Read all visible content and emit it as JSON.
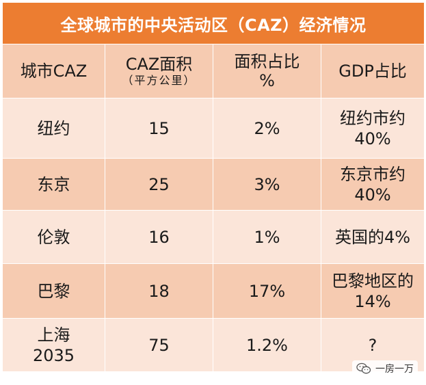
{
  "title": "全球城市的中央活动区（CAZ）经济情况",
  "headers": {
    "city": "城市CAZ",
    "area": "CAZ面积",
    "area_unit": "（平方公里）",
    "area_pct_line1": "面积占比",
    "area_pct_line2": "%",
    "gdp": "GDP占比"
  },
  "rows": [
    {
      "city_l1": "纽约",
      "city_l2": "",
      "area": "15",
      "pct": "2%",
      "gdp_l1": "纽约市约",
      "gdp_l2": "40%"
    },
    {
      "city_l1": "东京",
      "city_l2": "",
      "area": "25",
      "pct": "3%",
      "gdp_l1": "东京市约",
      "gdp_l2": "40%"
    },
    {
      "city_l1": "伦敦",
      "city_l2": "",
      "area": "16",
      "pct": "1%",
      "gdp_l1": "英国的4%",
      "gdp_l2": ""
    },
    {
      "city_l1": "巴黎",
      "city_l2": "",
      "area": "18",
      "pct": "17%",
      "gdp_l1": "巴黎地区的",
      "gdp_l2": "14%"
    },
    {
      "city_l1": "上海",
      "city_l2": "2035",
      "area": "75",
      "pct": "1.2%",
      "gdp_l1": "?",
      "gdp_l2": ""
    }
  ],
  "watermark": "一房一万",
  "colors": {
    "title_bg": "#ec7d31",
    "header_bg": "#f6cbb1",
    "row_light": "#fbe5d9"
  }
}
